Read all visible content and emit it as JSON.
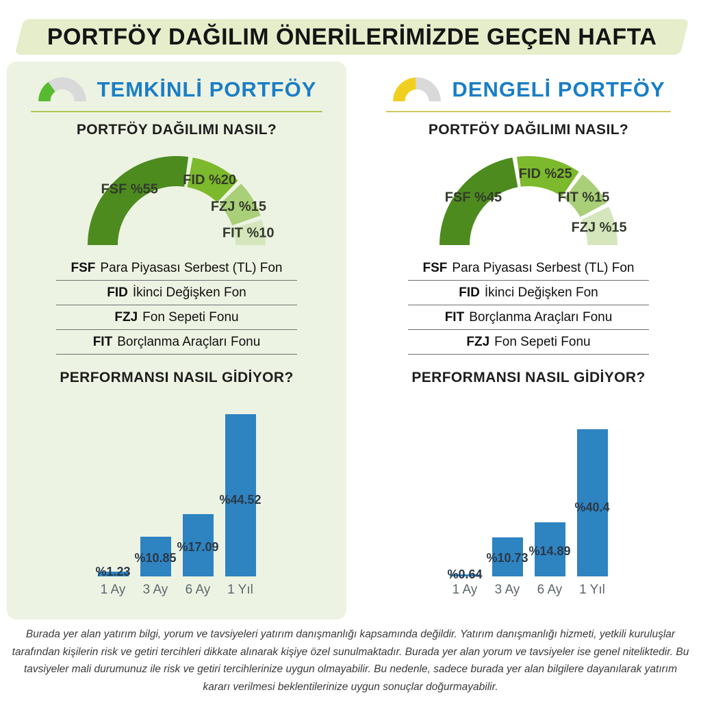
{
  "header": {
    "title": "PORTFÖY DAĞILIM ÖNERİLERİMİZDE GEÇEN HAFTA"
  },
  "panels": [
    {
      "title": "TEMKİNLİ PORTFÖY",
      "underline_color": "#aec553",
      "gauge": {
        "percent": 30,
        "color": "#56bb2e",
        "track_color": "#d9d9d9"
      },
      "distribution_title": "PORTFÖY DAĞILIMI NASIL?",
      "performance_title": "PERFORMANSI NASIL GİDİYOR?",
      "funds": [
        {
          "code": "FSF",
          "name": "Para Piyasası Serbest (TL) Fon"
        },
        {
          "code": "FID",
          "name": "İkinci Değişken Fon"
        },
        {
          "code": "FZJ",
          "name": "Fon Sepeti Fonu"
        },
        {
          "code": "FIT",
          "name": "Borçlanma Araçları Fonu"
        }
      ],
      "donut_chart": 0,
      "bar_chart": 1
    },
    {
      "title": "DENGELİ PORTFÖY",
      "underline_color": "#cdc75f",
      "gauge": {
        "percent": 48,
        "color": "#f1cf1e",
        "track_color": "#d9d9d9"
      },
      "distribution_title": "PORTFÖY DAĞILIMI NASIL?",
      "performance_title": "PERFORMANSI NASIL GİDİYOR?",
      "funds": [
        {
          "code": "FSF",
          "name": "Para Piyasası Serbest (TL) Fon"
        },
        {
          "code": "FID",
          "name": "İkinci Değişken Fon"
        },
        {
          "code": "FIT",
          "name": "Borçlanma Araçları Fonu"
        },
        {
          "code": "FZJ",
          "name": "Fon Sepeti Fonu"
        }
      ],
      "donut_chart": 2,
      "bar_chart": 3
    }
  ],
  "chart_data": [
    {
      "type": "pie",
      "style": "semi-donut",
      "title": "PORTFÖY DAĞILIMI NASIL?",
      "categories": [
        "FSF",
        "FID",
        "FZJ",
        "FIT"
      ],
      "values": [
        55,
        20,
        15,
        10
      ],
      "segment_labels": [
        "FSF %55",
        "FID %20",
        "FZJ %15",
        "FIT %10"
      ],
      "colors": [
        "#4d8b1f",
        "#7cb92c",
        "#a9cf79",
        "#d5e6bd"
      ],
      "legend_position": "none"
    },
    {
      "type": "bar",
      "title": "PERFORMANSI NASIL GİDİYOR?",
      "categories": [
        "1 Ay",
        "3 Ay",
        "6 Ay",
        "1 Yıl"
      ],
      "values": [
        1.23,
        10.85,
        17.09,
        44.52
      ],
      "bar_labels": [
        "%1.23",
        "%10.85",
        "%17.09",
        "%44.52"
      ],
      "bar_color": "#2e83c1",
      "xlabel": "",
      "ylabel": "",
      "ylim": [
        0,
        45
      ],
      "grid": false
    },
    {
      "type": "pie",
      "style": "semi-donut",
      "title": "PORTFÖY DAĞILIMI NASIL?",
      "categories": [
        "FSF",
        "FID",
        "FIT",
        "FZJ"
      ],
      "values": [
        45,
        25,
        15,
        15
      ],
      "segment_labels": [
        "FSF %45",
        "FID %25",
        "FIT %15",
        "FZJ %15"
      ],
      "colors": [
        "#4d8b1f",
        "#7cb92c",
        "#a9cf79",
        "#d5e6bd"
      ],
      "legend_position": "none"
    },
    {
      "type": "bar",
      "title": "PERFORMANSI NASIL GİDİYOR?",
      "categories": [
        "1 Ay",
        "3 Ay",
        "6 Ay",
        "1 Yıl"
      ],
      "values": [
        0.64,
        10.73,
        14.89,
        40.4
      ],
      "bar_labels": [
        "%0.64",
        "%10.73",
        "%14.89",
        "%40.4"
      ],
      "bar_color": "#2e83c1",
      "xlabel": "",
      "ylabel": "",
      "ylim": [
        0,
        45
      ],
      "grid": false
    }
  ],
  "footer": {
    "text": "Burada yer alan yatırım bilgi, yorum ve tavsiyeleri yatırım danışmanlığı kapsamında değildir. Yatırım danışmanlığı hizmeti, yetkili kuruluşlar tarafından kişilerin risk ve getiri tercihleri dikkate alınarak kişiye özel sunulmaktadır. Burada yer alan yorum ve tavsiyeler ise genel niteliktedir. Bu tavsiyeler mali durumunuz ile risk ve getiri tercihlerinize uygun olmayabilir. Bu nedenle, sadece burada yer alan bilgilere dayanılarak yatırım kararı verilmesi beklentilerinize uygun sonuçlar doğurmayabilir."
  }
}
